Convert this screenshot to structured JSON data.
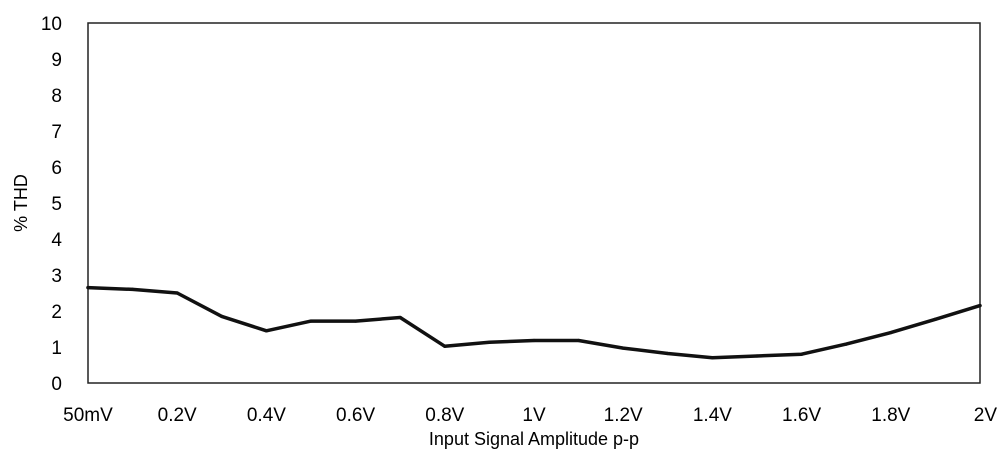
{
  "chart_data": {
    "type": "line",
    "title": "",
    "xlabel": "Input Signal Amplitude p-p",
    "ylabel": "% THD",
    "ylim": [
      0,
      10
    ],
    "yticks": [
      "0",
      "1",
      "2",
      "3",
      "4",
      "5",
      "6",
      "7",
      "8",
      "9",
      "10"
    ],
    "xticks": [
      "50mV",
      "0.2V",
      "0.4V",
      "0.6V",
      "0.8V",
      "1V",
      "1.2V",
      "1.4V",
      "1.6V",
      "1.8V",
      "2V"
    ],
    "x": [
      "50mV",
      "0.1V",
      "0.2V",
      "0.3V",
      "0.4V",
      "0.5V",
      "0.6V",
      "0.7V",
      "0.8V",
      "0.9V",
      "1V",
      "1.1V",
      "1.2V",
      "1.3V",
      "1.4V",
      "1.5V",
      "1.6V",
      "1.7V",
      "1.8V",
      "1.9V",
      "2V"
    ],
    "series": [
      {
        "values": [
          2.65,
          2.6,
          2.5,
          1.85,
          1.45,
          1.72,
          1.72,
          1.82,
          1.02,
          1.13,
          1.18,
          1.18,
          0.97,
          0.82,
          0.7,
          0.75,
          0.8,
          1.08,
          1.4,
          1.77,
          2.15
        ]
      }
    ],
    "grid": false,
    "legend": "none",
    "line_color": "#111111",
    "frame_color": "#222222"
  }
}
